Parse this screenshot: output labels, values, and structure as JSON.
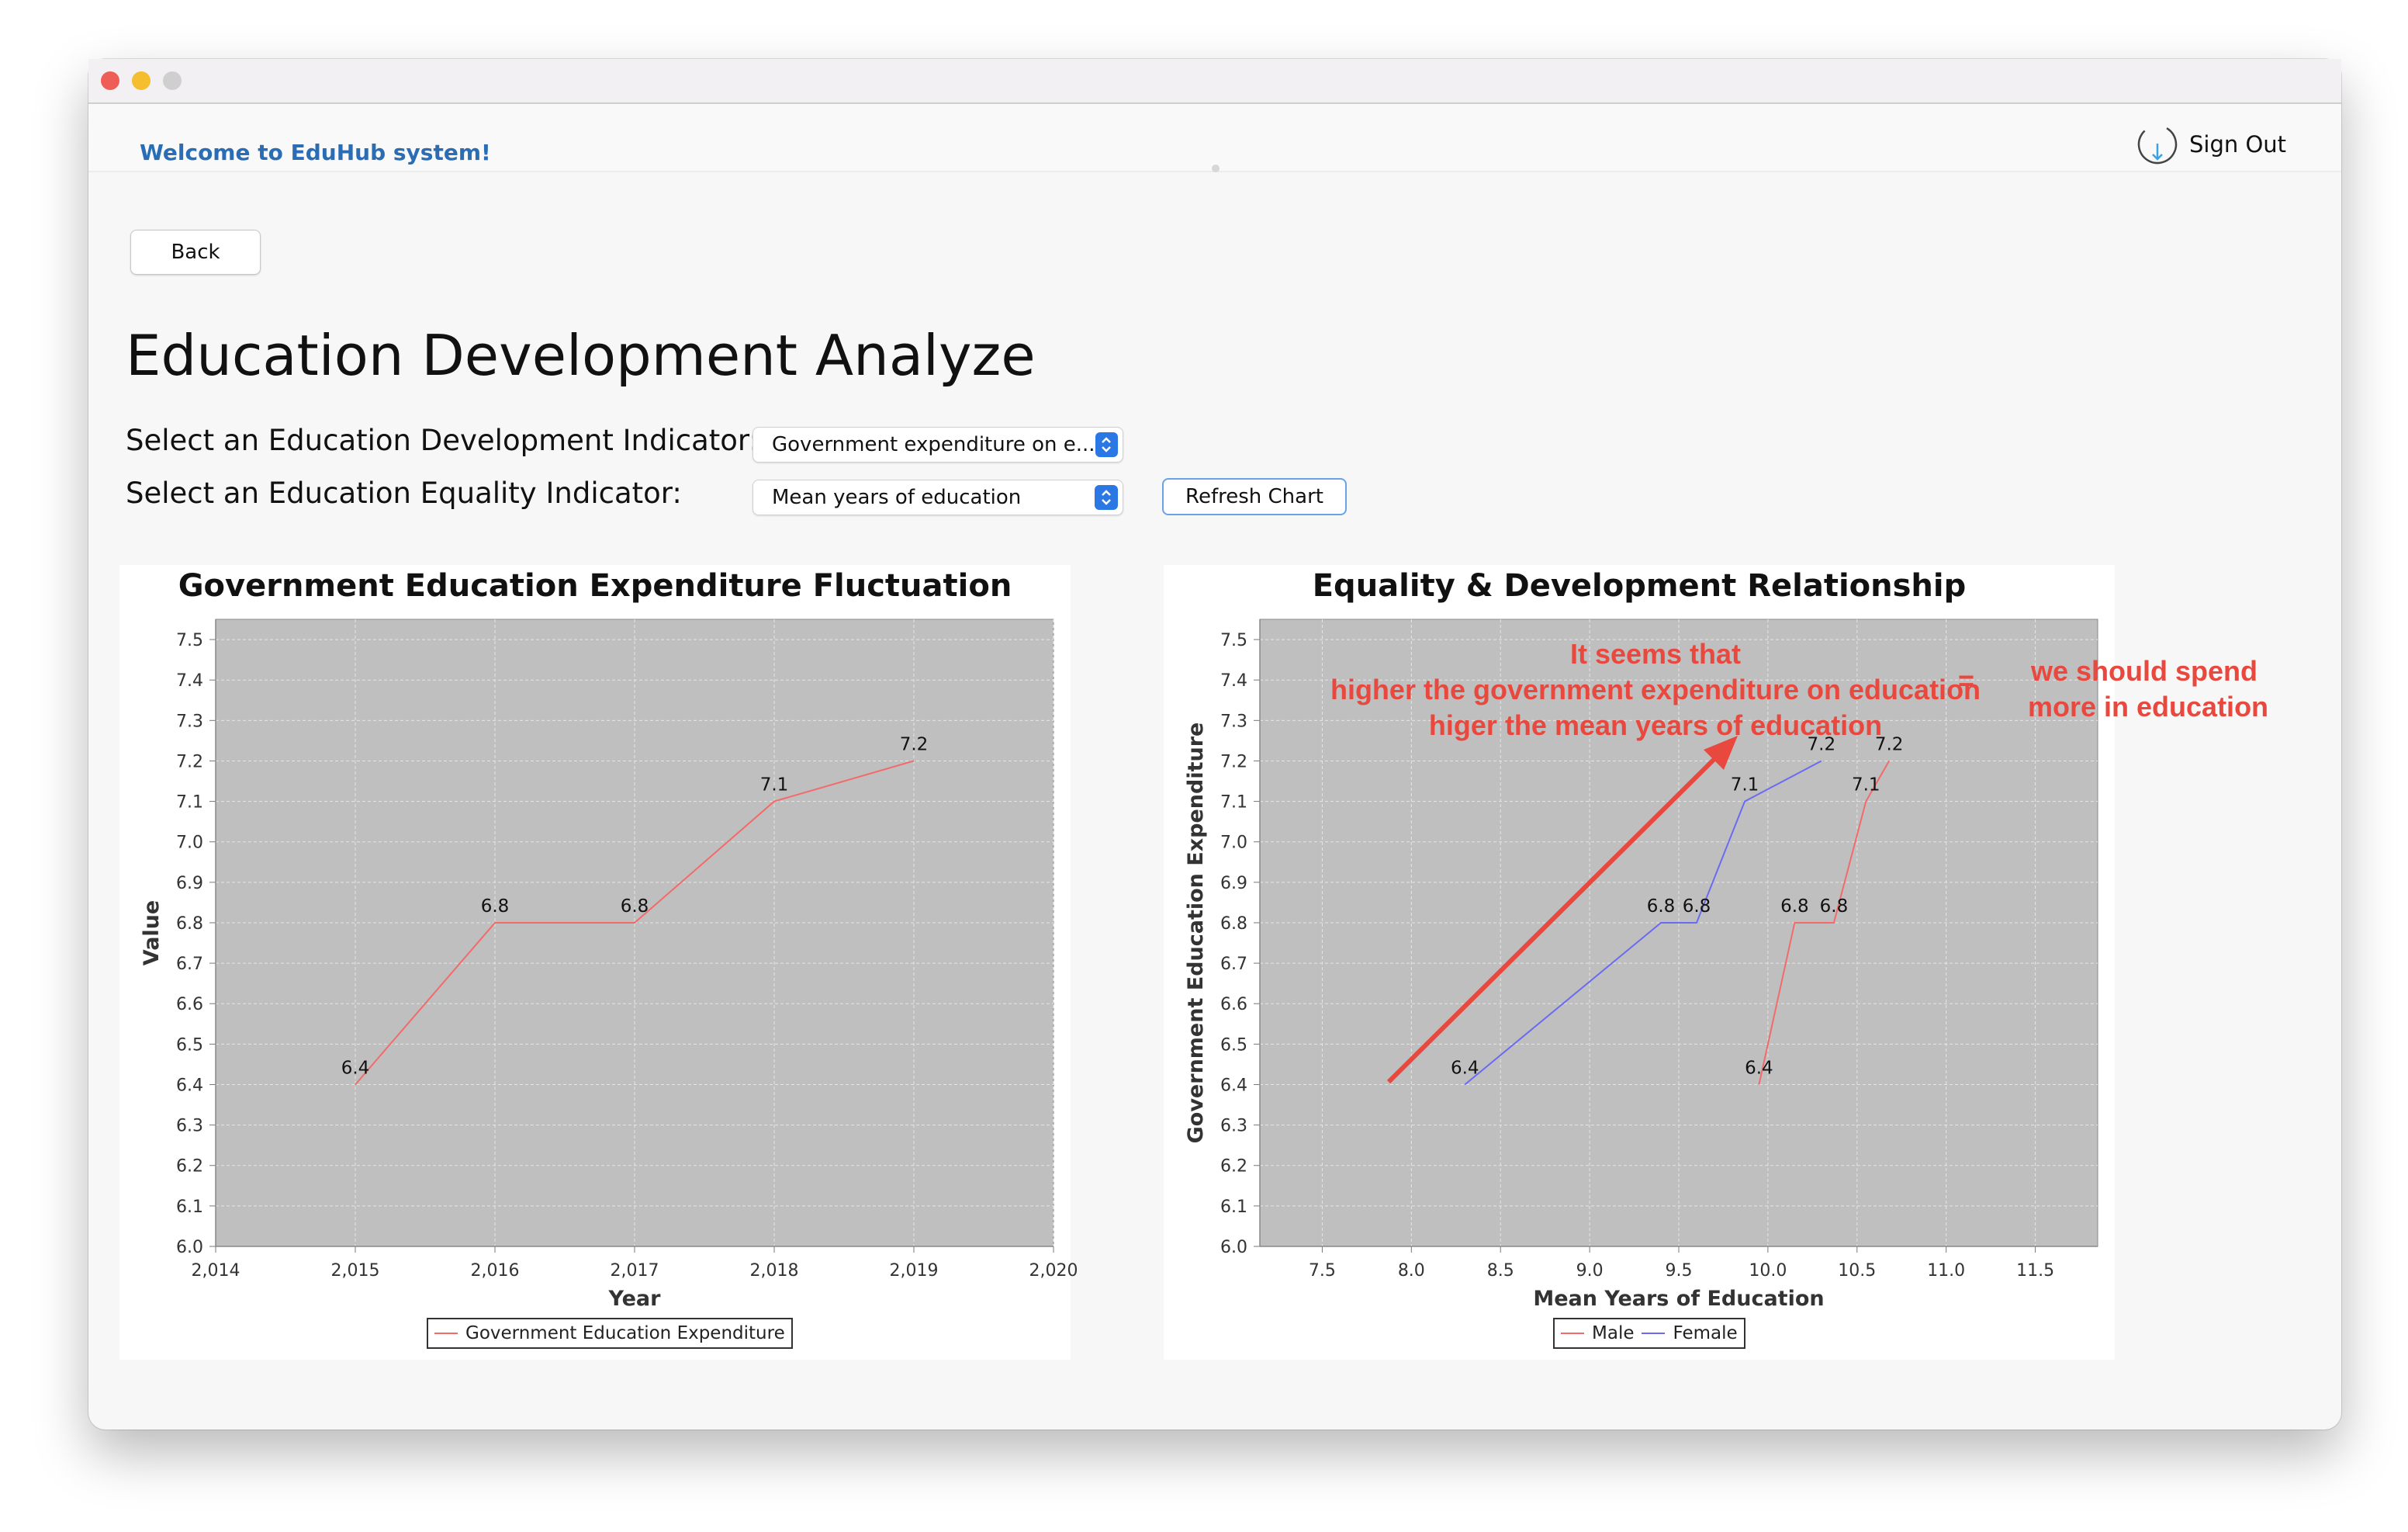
{
  "header": {
    "welcome": "Welcome to EduHub system!",
    "sign_out": "Sign Out"
  },
  "back_label": "Back",
  "page_title": "Education Development Analyze",
  "controls": {
    "development_label": "Select an Education Development Indicator:",
    "development_value": "Government expenditure on e...",
    "equality_label": "Select an Education Equality Indicator:",
    "equality_value": "Mean years of education",
    "refresh_label": "Refresh Chart"
  },
  "annotations": {
    "line1": "It seems that",
    "line2": "higher the government expenditure on education",
    "line3": "higer the mean years of education",
    "equals": "=",
    "conclusion1": "we should spend",
    "conclusion2": "more in education"
  },
  "colors": {
    "accent": "#2b78e4",
    "welcome_text": "#2a6db5",
    "annotation": "#e8483d",
    "plot_bg": "#bfbfbf",
    "series_red": "#f26b6b",
    "series_blue": "#6b6bf2"
  },
  "chart_data": [
    {
      "type": "line",
      "title": "Government Education Expenditure Fluctuation",
      "xlabel": "Year",
      "ylabel": "Value",
      "xlim": [
        2014,
        2020
      ],
      "ylim": [
        6.0,
        7.55
      ],
      "xticks": [
        "2,014",
        "2,015",
        "2,016",
        "2,017",
        "2,018",
        "2,019",
        "2,020"
      ],
      "yticks": [
        "6.0",
        "6.1",
        "6.2",
        "6.3",
        "6.4",
        "6.5",
        "6.6",
        "6.7",
        "6.8",
        "6.9",
        "7.0",
        "7.1",
        "7.2",
        "7.3",
        "7.4",
        "7.5"
      ],
      "grid": true,
      "legend_position": "bottom",
      "series": [
        {
          "name": "Government Education Expenditure",
          "color": "#f26b6b",
          "x": [
            2015,
            2016,
            2017,
            2018,
            2019
          ],
          "y": [
            6.4,
            6.8,
            6.8,
            7.1,
            7.2
          ],
          "labels": [
            "6.4",
            "6.8",
            "6.8",
            "7.1",
            "7.2"
          ]
        }
      ]
    },
    {
      "type": "line",
      "title": "Equality & Development Relationship",
      "xlabel": "Mean Years of Education",
      "ylabel": "Government Education Expenditure",
      "xlim": [
        7.15,
        11.85
      ],
      "ylim": [
        6.0,
        7.55
      ],
      "xticks": [
        "7.5",
        "8.0",
        "8.5",
        "9.0",
        "9.5",
        "10.0",
        "10.5",
        "11.0",
        "11.5"
      ],
      "yticks": [
        "6.0",
        "6.1",
        "6.2",
        "6.3",
        "6.4",
        "6.5",
        "6.6",
        "6.7",
        "6.8",
        "6.9",
        "7.0",
        "7.1",
        "7.2",
        "7.3",
        "7.4",
        "7.5"
      ],
      "grid": true,
      "legend_position": "bottom",
      "series": [
        {
          "name": "Male",
          "color": "#f26b6b",
          "x": [
            9.95,
            10.15,
            10.37,
            10.55,
            10.68
          ],
          "y": [
            6.4,
            6.8,
            6.8,
            7.1,
            7.2
          ],
          "labels": [
            "6.4",
            "6.8",
            "6.8",
            "7.1",
            "7.2"
          ]
        },
        {
          "name": "Female",
          "color": "#6b6bf2",
          "x": [
            8.3,
            9.4,
            9.6,
            9.87,
            10.3
          ],
          "y": [
            6.4,
            6.8,
            6.8,
            7.1,
            7.2
          ],
          "labels": [
            "6.4",
            "6.8",
            "6.8",
            "7.1",
            "7.2"
          ]
        }
      ]
    }
  ]
}
